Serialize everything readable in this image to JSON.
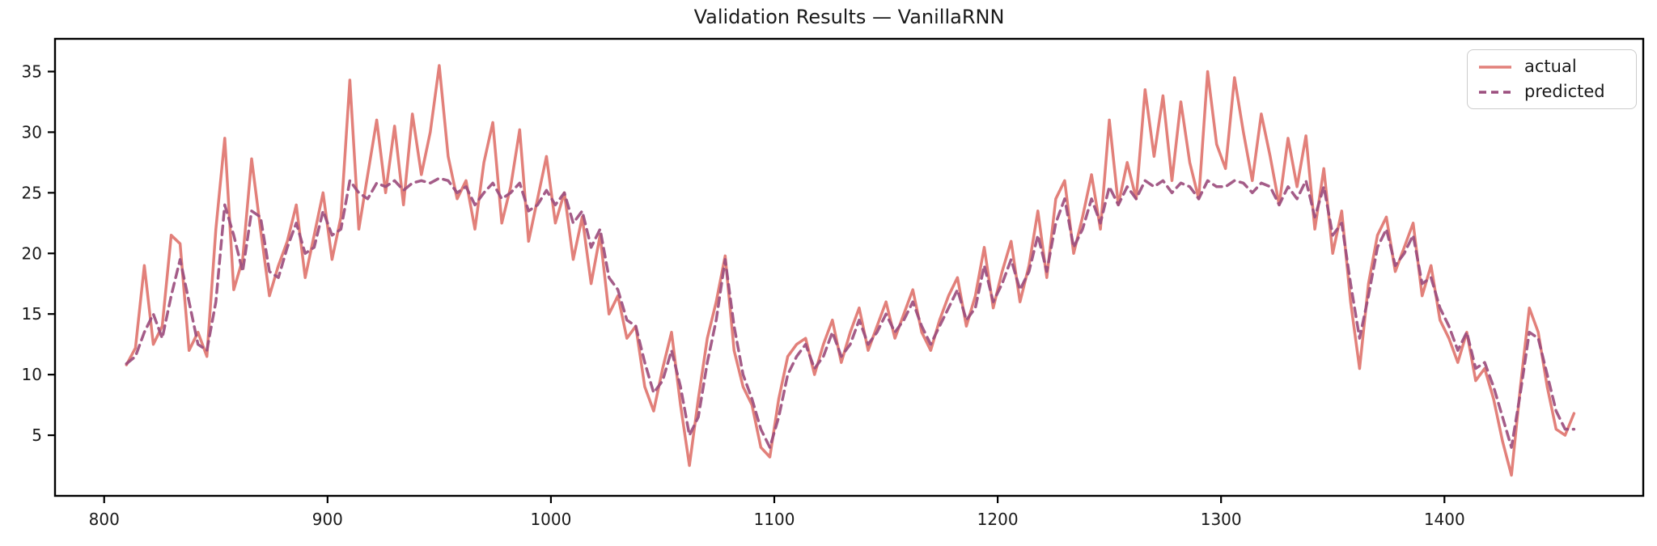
{
  "figure": {
    "background": "#ffffff"
  },
  "chart_data": {
    "type": "line",
    "title": "Validation Results — VanillaRNN",
    "xlabel": "",
    "ylabel": "",
    "xlim": [
      778,
      1489
    ],
    "ylim": [
      0,
      37.7
    ],
    "x_ticks": [
      800,
      900,
      1000,
      1100,
      1200,
      1300,
      1400
    ],
    "y_ticks": [
      5,
      10,
      15,
      20,
      25,
      30,
      35
    ],
    "grid": false,
    "legend_position": "upper right",
    "frame_color": "#000000",
    "x": [
      810,
      814,
      818,
      822,
      826,
      830,
      834,
      838,
      842,
      846,
      850,
      854,
      858,
      862,
      866,
      870,
      874,
      878,
      882,
      886,
      890,
      894,
      898,
      902,
      906,
      910,
      914,
      918,
      922,
      926,
      930,
      934,
      938,
      942,
      946,
      950,
      954,
      958,
      962,
      966,
      970,
      974,
      978,
      982,
      986,
      990,
      994,
      998,
      1002,
      1006,
      1010,
      1014,
      1018,
      1022,
      1026,
      1030,
      1034,
      1038,
      1042,
      1046,
      1050,
      1054,
      1058,
      1062,
      1066,
      1070,
      1074,
      1078,
      1082,
      1086,
      1090,
      1094,
      1098,
      1102,
      1106,
      1110,
      1114,
      1118,
      1122,
      1126,
      1130,
      1134,
      1138,
      1142,
      1146,
      1150,
      1154,
      1158,
      1162,
      1166,
      1170,
      1174,
      1178,
      1182,
      1186,
      1190,
      1194,
      1198,
      1202,
      1206,
      1210,
      1214,
      1218,
      1222,
      1226,
      1230,
      1234,
      1238,
      1242,
      1246,
      1250,
      1254,
      1258,
      1262,
      1266,
      1270,
      1274,
      1278,
      1282,
      1286,
      1290,
      1294,
      1298,
      1302,
      1306,
      1310,
      1314,
      1318,
      1322,
      1326,
      1330,
      1334,
      1338,
      1342,
      1346,
      1350,
      1354,
      1358,
      1362,
      1366,
      1370,
      1374,
      1378,
      1382,
      1386,
      1390,
      1394,
      1398,
      1402,
      1406,
      1410,
      1414,
      1418,
      1422,
      1426,
      1430,
      1434,
      1438,
      1442,
      1446,
      1450,
      1454,
      1458
    ],
    "series": [
      {
        "name": "actual",
        "color": "#e2807a",
        "style": "solid",
        "linewidth": 3.5,
        "values": [
          10.8,
          12.2,
          19.0,
          12.5,
          14.0,
          21.5,
          20.8,
          12.0,
          13.5,
          11.5,
          22.0,
          29.5,
          17.0,
          19.5,
          27.8,
          22.0,
          16.5,
          19.0,
          21.0,
          24.0,
          18.0,
          21.5,
          25.0,
          19.5,
          23.0,
          34.3,
          22.0,
          26.5,
          31.0,
          25.0,
          30.5,
          24.0,
          31.5,
          26.5,
          30.0,
          35.5,
          28.0,
          24.5,
          26.0,
          22.0,
          27.5,
          30.8,
          22.5,
          25.5,
          30.2,
          21.0,
          24.5,
          28.0,
          22.5,
          25.0,
          19.5,
          23.0,
          17.5,
          21.5,
          15.0,
          16.5,
          13.0,
          14.0,
          9.0,
          7.0,
          10.5,
          13.5,
          7.5,
          2.5,
          8.0,
          13.0,
          16.0,
          19.8,
          12.0,
          9.0,
          7.5,
          4.0,
          3.2,
          8.0,
          11.5,
          12.5,
          13.0,
          10.0,
          12.5,
          14.5,
          11.0,
          13.5,
          15.5,
          12.0,
          14.0,
          16.0,
          13.0,
          15.0,
          17.0,
          13.5,
          12.0,
          14.5,
          16.5,
          18.0,
          14.0,
          16.5,
          20.5,
          15.5,
          18.5,
          21.0,
          16.0,
          19.0,
          23.5,
          18.0,
          24.5,
          26.0,
          20.0,
          23.0,
          26.5,
          22.0,
          31.0,
          24.0,
          27.5,
          24.5,
          33.5,
          28.0,
          33.0,
          26.0,
          32.5,
          27.5,
          24.5,
          35.0,
          29.0,
          27.0,
          34.5,
          30.0,
          26.0,
          31.5,
          28.0,
          24.0,
          29.5,
          25.5,
          29.7,
          22.0,
          27.0,
          20.0,
          23.5,
          16.0,
          10.5,
          17.5,
          21.5,
          23.0,
          18.5,
          20.5,
          22.5,
          16.5,
          19.0,
          14.5,
          13.0,
          11.0,
          13.5,
          9.5,
          10.5,
          8.0,
          4.5,
          1.7,
          9.0,
          15.5,
          13.5,
          9.0,
          5.5,
          5.0,
          6.8
        ]
      },
      {
        "name": "predicted",
        "color": "#9c4e7e",
        "style": "dashed",
        "linewidth": 3.5,
        "values": [
          10.9,
          11.5,
          13.5,
          15.0,
          13.0,
          16.5,
          19.5,
          16.0,
          12.5,
          12.0,
          16.0,
          24.0,
          21.5,
          18.5,
          23.5,
          23.0,
          18.5,
          18.0,
          20.5,
          22.5,
          20.0,
          20.5,
          23.5,
          21.5,
          22.0,
          26.0,
          25.0,
          24.5,
          25.8,
          25.5,
          26.0,
          25.2,
          25.8,
          26.0,
          25.8,
          26.2,
          26.0,
          25.0,
          25.5,
          24.0,
          25.0,
          25.8,
          24.5,
          25.0,
          25.8,
          23.5,
          24.0,
          25.2,
          24.0,
          25.0,
          22.5,
          23.5,
          20.5,
          22.0,
          18.0,
          17.0,
          14.5,
          14.0,
          11.0,
          8.5,
          9.5,
          12.0,
          9.0,
          5.0,
          6.5,
          11.0,
          14.5,
          19.5,
          14.0,
          10.0,
          8.0,
          5.5,
          4.0,
          6.5,
          10.0,
          11.5,
          12.5,
          10.5,
          11.5,
          13.5,
          11.5,
          12.5,
          14.5,
          12.5,
          13.5,
          15.0,
          13.5,
          14.5,
          16.0,
          14.0,
          12.5,
          14.0,
          15.5,
          17.0,
          14.5,
          15.5,
          19.0,
          16.0,
          17.5,
          19.5,
          17.0,
          18.5,
          21.5,
          18.5,
          22.5,
          24.5,
          20.5,
          22.0,
          24.5,
          22.5,
          25.5,
          24.0,
          25.5,
          24.5,
          26.0,
          25.5,
          26.0,
          25.0,
          25.8,
          25.5,
          24.5,
          26.0,
          25.5,
          25.5,
          26.0,
          25.8,
          25.0,
          25.8,
          25.5,
          24.0,
          25.5,
          24.5,
          26.0,
          23.0,
          25.5,
          21.5,
          22.5,
          17.5,
          13.0,
          16.5,
          20.5,
          22.0,
          19.0,
          20.0,
          21.5,
          17.5,
          18.0,
          15.5,
          14.0,
          12.0,
          13.5,
          10.5,
          11.0,
          9.0,
          6.5,
          4.0,
          8.5,
          13.5,
          13.0,
          10.0,
          7.0,
          5.5,
          5.5
        ]
      }
    ]
  }
}
